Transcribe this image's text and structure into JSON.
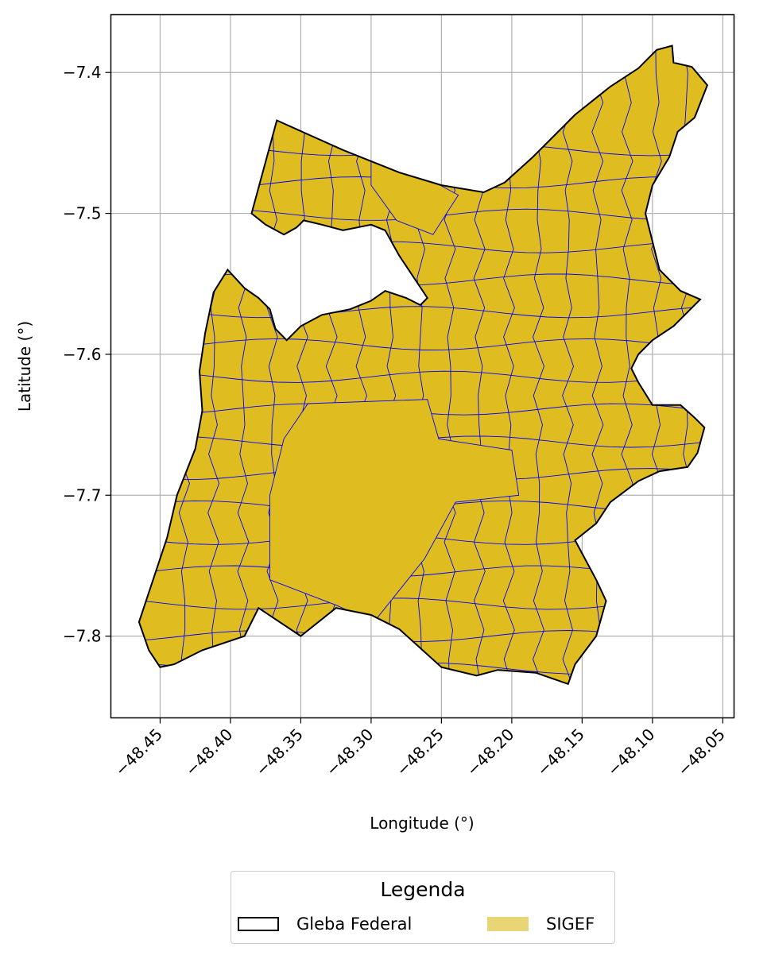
{
  "chart_data": {
    "type": "map",
    "xlabel": "Longitude (°)",
    "ylabel": "Latitude (°)",
    "xlim": [
      -48.485,
      -48.042
    ],
    "ylim": [
      -7.858,
      -7.359
    ],
    "xticks": [
      -48.45,
      -48.4,
      -48.35,
      -48.3,
      -48.25,
      -48.2,
      -48.15,
      -48.1,
      -48.05
    ],
    "xtick_labels": [
      "−48.45",
      "−48.40",
      "−48.35",
      "−48.30",
      "−48.25",
      "−48.20",
      "−48.15",
      "−48.10",
      "−48.05"
    ],
    "yticks": [
      -7.4,
      -7.5,
      -7.6,
      -7.7,
      -7.8
    ],
    "ytick_labels": [
      "−7.4",
      "−7.5",
      "−7.6",
      "−7.7",
      "−7.8"
    ],
    "grid": true,
    "colors": {
      "fill": "#dfbd20",
      "outline": "#000000",
      "parcel_lines": "#0000ff",
      "legend_fill": "#e8d676"
    },
    "gleba_boundary": [
      [
        -48.367,
        -7.434
      ],
      [
        -48.32,
        -7.455
      ],
      [
        -48.28,
        -7.471
      ],
      [
        -48.25,
        -7.48
      ],
      [
        -48.22,
        -7.485
      ],
      [
        -48.205,
        -7.478
      ],
      [
        -48.185,
        -7.46
      ],
      [
        -48.17,
        -7.445
      ],
      [
        -48.155,
        -7.43
      ],
      [
        -48.13,
        -7.41
      ],
      [
        -48.11,
        -7.397
      ],
      [
        -48.097,
        -7.384
      ],
      [
        -48.086,
        -7.381
      ],
      [
        -48.085,
        -7.393
      ],
      [
        -48.072,
        -7.396
      ],
      [
        -48.061,
        -7.409
      ],
      [
        -48.07,
        -7.432
      ],
      [
        -48.082,
        -7.442
      ],
      [
        -48.088,
        -7.46
      ],
      [
        -48.1,
        -7.48
      ],
      [
        -48.105,
        -7.5
      ],
      [
        -48.1,
        -7.52
      ],
      [
        -48.095,
        -7.54
      ],
      [
        -48.08,
        -7.555
      ],
      [
        -48.066,
        -7.561
      ],
      [
        -48.085,
        -7.58
      ],
      [
        -48.1,
        -7.59
      ],
      [
        -48.11,
        -7.6
      ],
      [
        -48.115,
        -7.61
      ],
      [
        -48.11,
        -7.62
      ],
      [
        -48.1,
        -7.636
      ],
      [
        -48.08,
        -7.636
      ],
      [
        -48.07,
        -7.645
      ],
      [
        -48.063,
        -7.652
      ],
      [
        -48.068,
        -7.67
      ],
      [
        -48.075,
        -7.68
      ],
      [
        -48.095,
        -7.683
      ],
      [
        -48.11,
        -7.69
      ],
      [
        -48.13,
        -7.705
      ],
      [
        -48.14,
        -7.72
      ],
      [
        -48.155,
        -7.732
      ],
      [
        -48.14,
        -7.76
      ],
      [
        -48.133,
        -7.775
      ],
      [
        -48.14,
        -7.8
      ],
      [
        -48.155,
        -7.82
      ],
      [
        -48.16,
        -7.834
      ],
      [
        -48.183,
        -7.826
      ],
      [
        -48.21,
        -7.824
      ],
      [
        -48.225,
        -7.828
      ],
      [
        -48.25,
        -7.822
      ],
      [
        -48.28,
        -7.795
      ],
      [
        -48.3,
        -7.785
      ],
      [
        -48.325,
        -7.78
      ],
      [
        -48.35,
        -7.8
      ],
      [
        -48.38,
        -7.78
      ],
      [
        -48.39,
        -7.8
      ],
      [
        -48.42,
        -7.81
      ],
      [
        -48.44,
        -7.82
      ],
      [
        -48.45,
        -7.822
      ],
      [
        -48.458,
        -7.81
      ],
      [
        -48.465,
        -7.79
      ],
      [
        -48.455,
        -7.76
      ],
      [
        -48.445,
        -7.73
      ],
      [
        -48.438,
        -7.7
      ],
      [
        -48.425,
        -7.667
      ],
      [
        -48.42,
        -7.64
      ],
      [
        -48.422,
        -7.612
      ],
      [
        -48.418,
        -7.585
      ],
      [
        -48.412,
        -7.556
      ],
      [
        -48.402,
        -7.54
      ],
      [
        -48.39,
        -7.553
      ],
      [
        -48.38,
        -7.56
      ],
      [
        -48.372,
        -7.568
      ],
      [
        -48.368,
        -7.582
      ],
      [
        -48.36,
        -7.59
      ],
      [
        -48.35,
        -7.58
      ],
      [
        -48.335,
        -7.572
      ],
      [
        -48.315,
        -7.568
      ],
      [
        -48.3,
        -7.562
      ],
      [
        -48.29,
        -7.555
      ],
      [
        -48.275,
        -7.56
      ],
      [
        -48.265,
        -7.565
      ],
      [
        -48.26,
        -7.56
      ],
      [
        -48.27,
        -7.545
      ],
      [
        -48.28,
        -7.53
      ],
      [
        -48.29,
        -7.512
      ],
      [
        -48.3,
        -7.508
      ],
      [
        -48.32,
        -7.512
      ],
      [
        -48.335,
        -7.508
      ],
      [
        -48.348,
        -7.505
      ],
      [
        -48.353,
        -7.51
      ],
      [
        -48.362,
        -7.515
      ],
      [
        -48.375,
        -7.508
      ],
      [
        -48.385,
        -7.5
      ]
    ],
    "parcel_grid_lon": [
      -48.433,
      -48.412,
      -48.391,
      -48.37,
      -48.349,
      -48.328,
      -48.307,
      -48.286,
      -48.265,
      -48.244,
      -48.223,
      -48.202,
      -48.181,
      -48.16,
      -48.139,
      -48.118,
      -48.097,
      -48.076
    ],
    "parcel_grid_lat": [
      -7.455,
      -7.478,
      -7.501,
      -7.524,
      -7.547,
      -7.57,
      -7.593,
      -7.616,
      -7.639,
      -7.662,
      -7.685,
      -7.708,
      -7.731,
      -7.754,
      -7.777,
      -7.8,
      -7.823
    ],
    "open_zones": [
      [
        [
          -48.345,
          -7.635
        ],
        [
          -48.26,
          -7.632
        ],
        [
          -48.252,
          -7.66
        ],
        [
          -48.2,
          -7.668
        ],
        [
          -48.195,
          -7.7
        ],
        [
          -48.24,
          -7.705
        ],
        [
          -48.262,
          -7.745
        ],
        [
          -48.298,
          -7.79
        ],
        [
          -48.325,
          -7.778
        ],
        [
          -48.372,
          -7.76
        ],
        [
          -48.372,
          -7.7
        ],
        [
          -48.362,
          -7.66
        ]
      ],
      [
        [
          -48.3,
          -7.455
        ],
        [
          -48.262,
          -7.474
        ],
        [
          -48.238,
          -7.487
        ],
        [
          -48.256,
          -7.515
        ],
        [
          -48.282,
          -7.505
        ],
        [
          -48.3,
          -7.48
        ]
      ]
    ],
    "legend": {
      "title": "Legenda",
      "items": [
        {
          "label": "Gleba Federal",
          "style": "outline"
        },
        {
          "label": "SIGEF",
          "style": "fill"
        }
      ]
    }
  }
}
